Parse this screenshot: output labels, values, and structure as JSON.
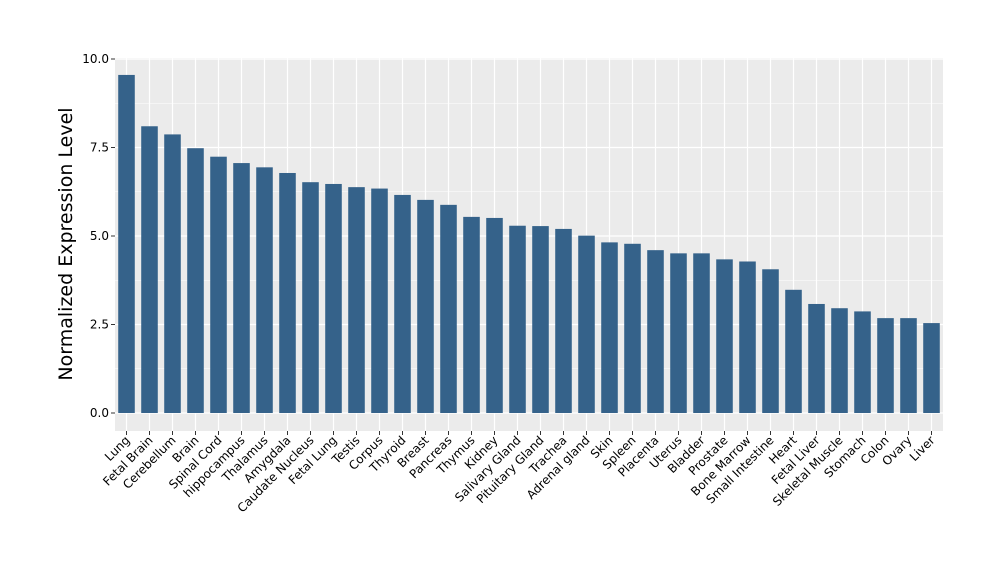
{
  "chart_data": {
    "type": "bar",
    "title": "",
    "xlabel": "",
    "ylabel": "Normalized Expression Level",
    "ylim": [
      -0.4,
      10.0
    ],
    "yticks": [
      "0.0",
      "2.5",
      "5.0",
      "7.5",
      "10.0"
    ],
    "ytick_values": [
      0,
      2.5,
      5,
      7.5,
      10
    ],
    "grid": true,
    "legend": "none",
    "colors": {
      "bar": "#35628a",
      "panel": "#ebebeb",
      "grid": "#ffffff"
    },
    "categories": [
      "Lung",
      "Fetal Brain",
      "Cerebellum",
      "Brain",
      "Spinal Cord",
      "hippocampus",
      "Thalamus",
      "Amygdala",
      "Caudate Nucleus",
      "Fetal Lung",
      "Testis",
      "Corpus",
      "Thyroid",
      "Breast",
      "Pancreas",
      "Thymus",
      "Kidney",
      "Salivary Gland",
      "Pituitary Gland",
      "Trachea",
      "Adrenal gland",
      "Skin",
      "Spleen",
      "Placenta",
      "Uterus",
      "Bladder",
      "Prostate",
      "Bone Marrow",
      "Small Intestine",
      "Heart",
      "Fetal Liver",
      "Skeletal Muscle",
      "Stomach",
      "Colon",
      "Ovary",
      "Liver"
    ],
    "values": [
      9.55,
      8.1,
      7.87,
      7.48,
      7.24,
      7.06,
      6.94,
      6.78,
      6.52,
      6.47,
      6.38,
      6.34,
      6.16,
      6.02,
      5.88,
      5.54,
      5.51,
      5.29,
      5.28,
      5.2,
      5.01,
      4.82,
      4.78,
      4.6,
      4.51,
      4.51,
      4.34,
      4.28,
      4.06,
      3.48,
      3.08,
      2.96,
      2.87,
      2.68,
      2.68,
      2.54
    ]
  }
}
